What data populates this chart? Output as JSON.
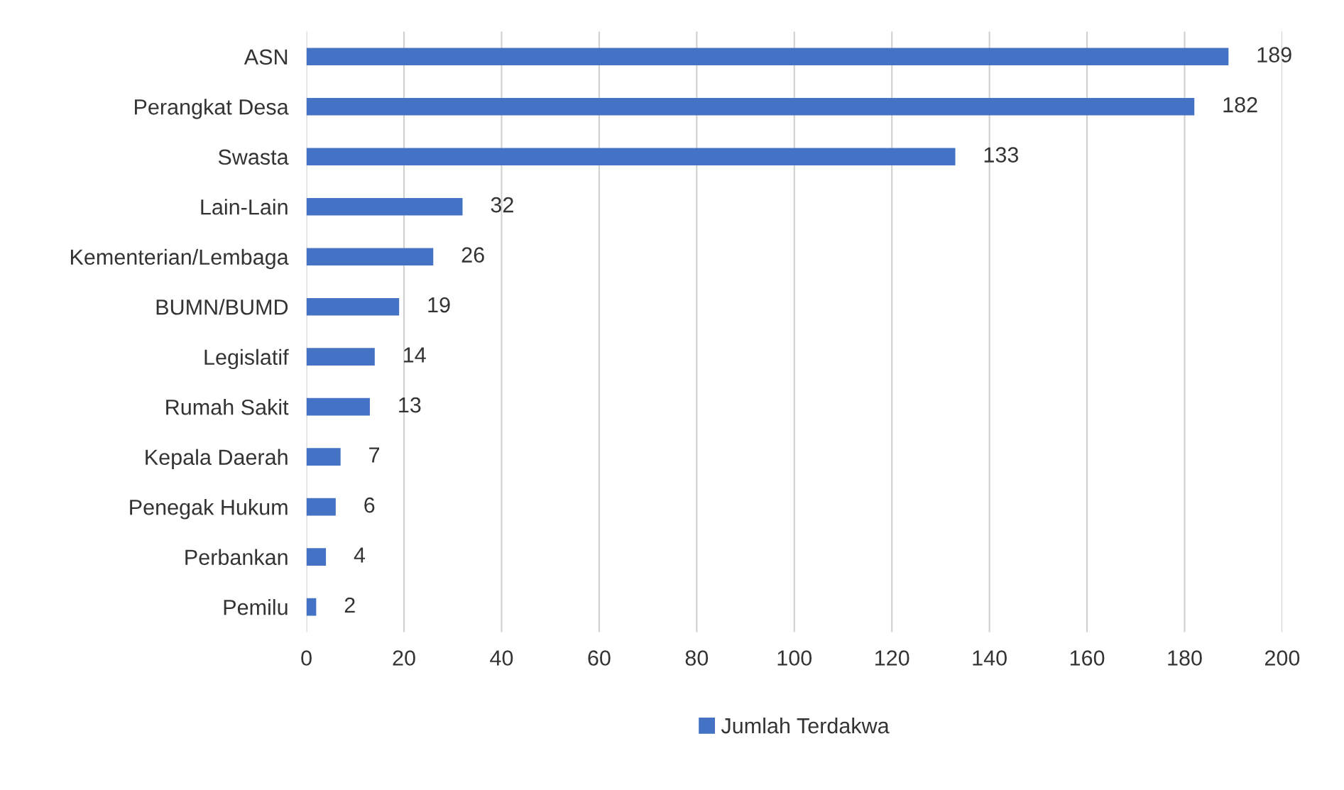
{
  "chart_data": {
    "type": "bar",
    "orientation": "horizontal",
    "categories": [
      "ASN",
      "Perangkat Desa",
      "Swasta",
      "Lain-Lain",
      "Kementerian/Lembaga",
      "BUMN/BUMD",
      "Legislatif",
      "Rumah Sakit",
      "Kepala Daerah",
      "Penegak Hukum",
      "Perbankan",
      "Pemilu"
    ],
    "series": [
      {
        "name": "Jumlah Terdakwa",
        "color": "#4472c4",
        "values": [
          189,
          182,
          133,
          32,
          26,
          19,
          14,
          13,
          7,
          6,
          4,
          2
        ]
      }
    ],
    "xlim": [
      0,
      200
    ],
    "xticks": [
      0,
      20,
      40,
      60,
      80,
      100,
      120,
      140,
      160,
      180,
      200
    ],
    "grid": "x",
    "legend": "bottom",
    "data_labels": true
  }
}
